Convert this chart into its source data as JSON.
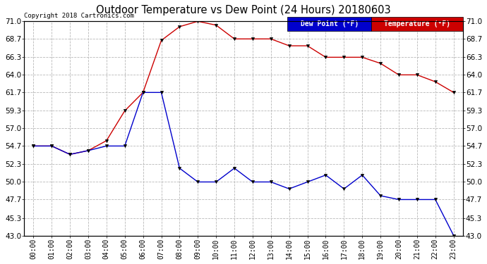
{
  "title": "Outdoor Temperature vs Dew Point (24 Hours) 20180603",
  "copyright": "Copyright 2018 Cartronics.com",
  "hours": [
    "00:00",
    "01:00",
    "02:00",
    "03:00",
    "04:00",
    "05:00",
    "06:00",
    "07:00",
    "08:00",
    "09:00",
    "10:00",
    "11:00",
    "12:00",
    "13:00",
    "14:00",
    "15:00",
    "16:00",
    "17:00",
    "18:00",
    "19:00",
    "20:00",
    "21:00",
    "22:00",
    "23:00"
  ],
  "temperature": [
    54.7,
    54.7,
    53.6,
    54.1,
    55.4,
    59.3,
    61.7,
    68.5,
    70.3,
    71.0,
    70.5,
    68.7,
    68.7,
    68.7,
    67.8,
    67.8,
    66.3,
    66.3,
    66.3,
    65.5,
    64.0,
    64.0,
    63.1,
    61.7
  ],
  "dew_point": [
    54.7,
    54.7,
    53.6,
    54.1,
    54.7,
    54.7,
    61.7,
    61.7,
    51.8,
    50.0,
    50.0,
    51.8,
    50.0,
    50.0,
    49.1,
    50.0,
    50.9,
    49.1,
    50.9,
    48.2,
    47.7,
    47.7,
    47.7,
    43.0
  ],
  "temp_color": "#cc0000",
  "dew_color": "#0000cc",
  "bg_color": "#ffffff",
  "plot_bg_color": "#ffffff",
  "grid_color": "#b0b0b0",
  "ylim_min": 43.0,
  "ylim_max": 71.0,
  "yticks": [
    43.0,
    45.3,
    47.7,
    50.0,
    52.3,
    54.7,
    57.0,
    59.3,
    61.7,
    64.0,
    66.3,
    68.7,
    71.0
  ],
  "legend_dew_label": "Dew Point (°F)",
  "legend_temp_label": "Temperature (°F)"
}
